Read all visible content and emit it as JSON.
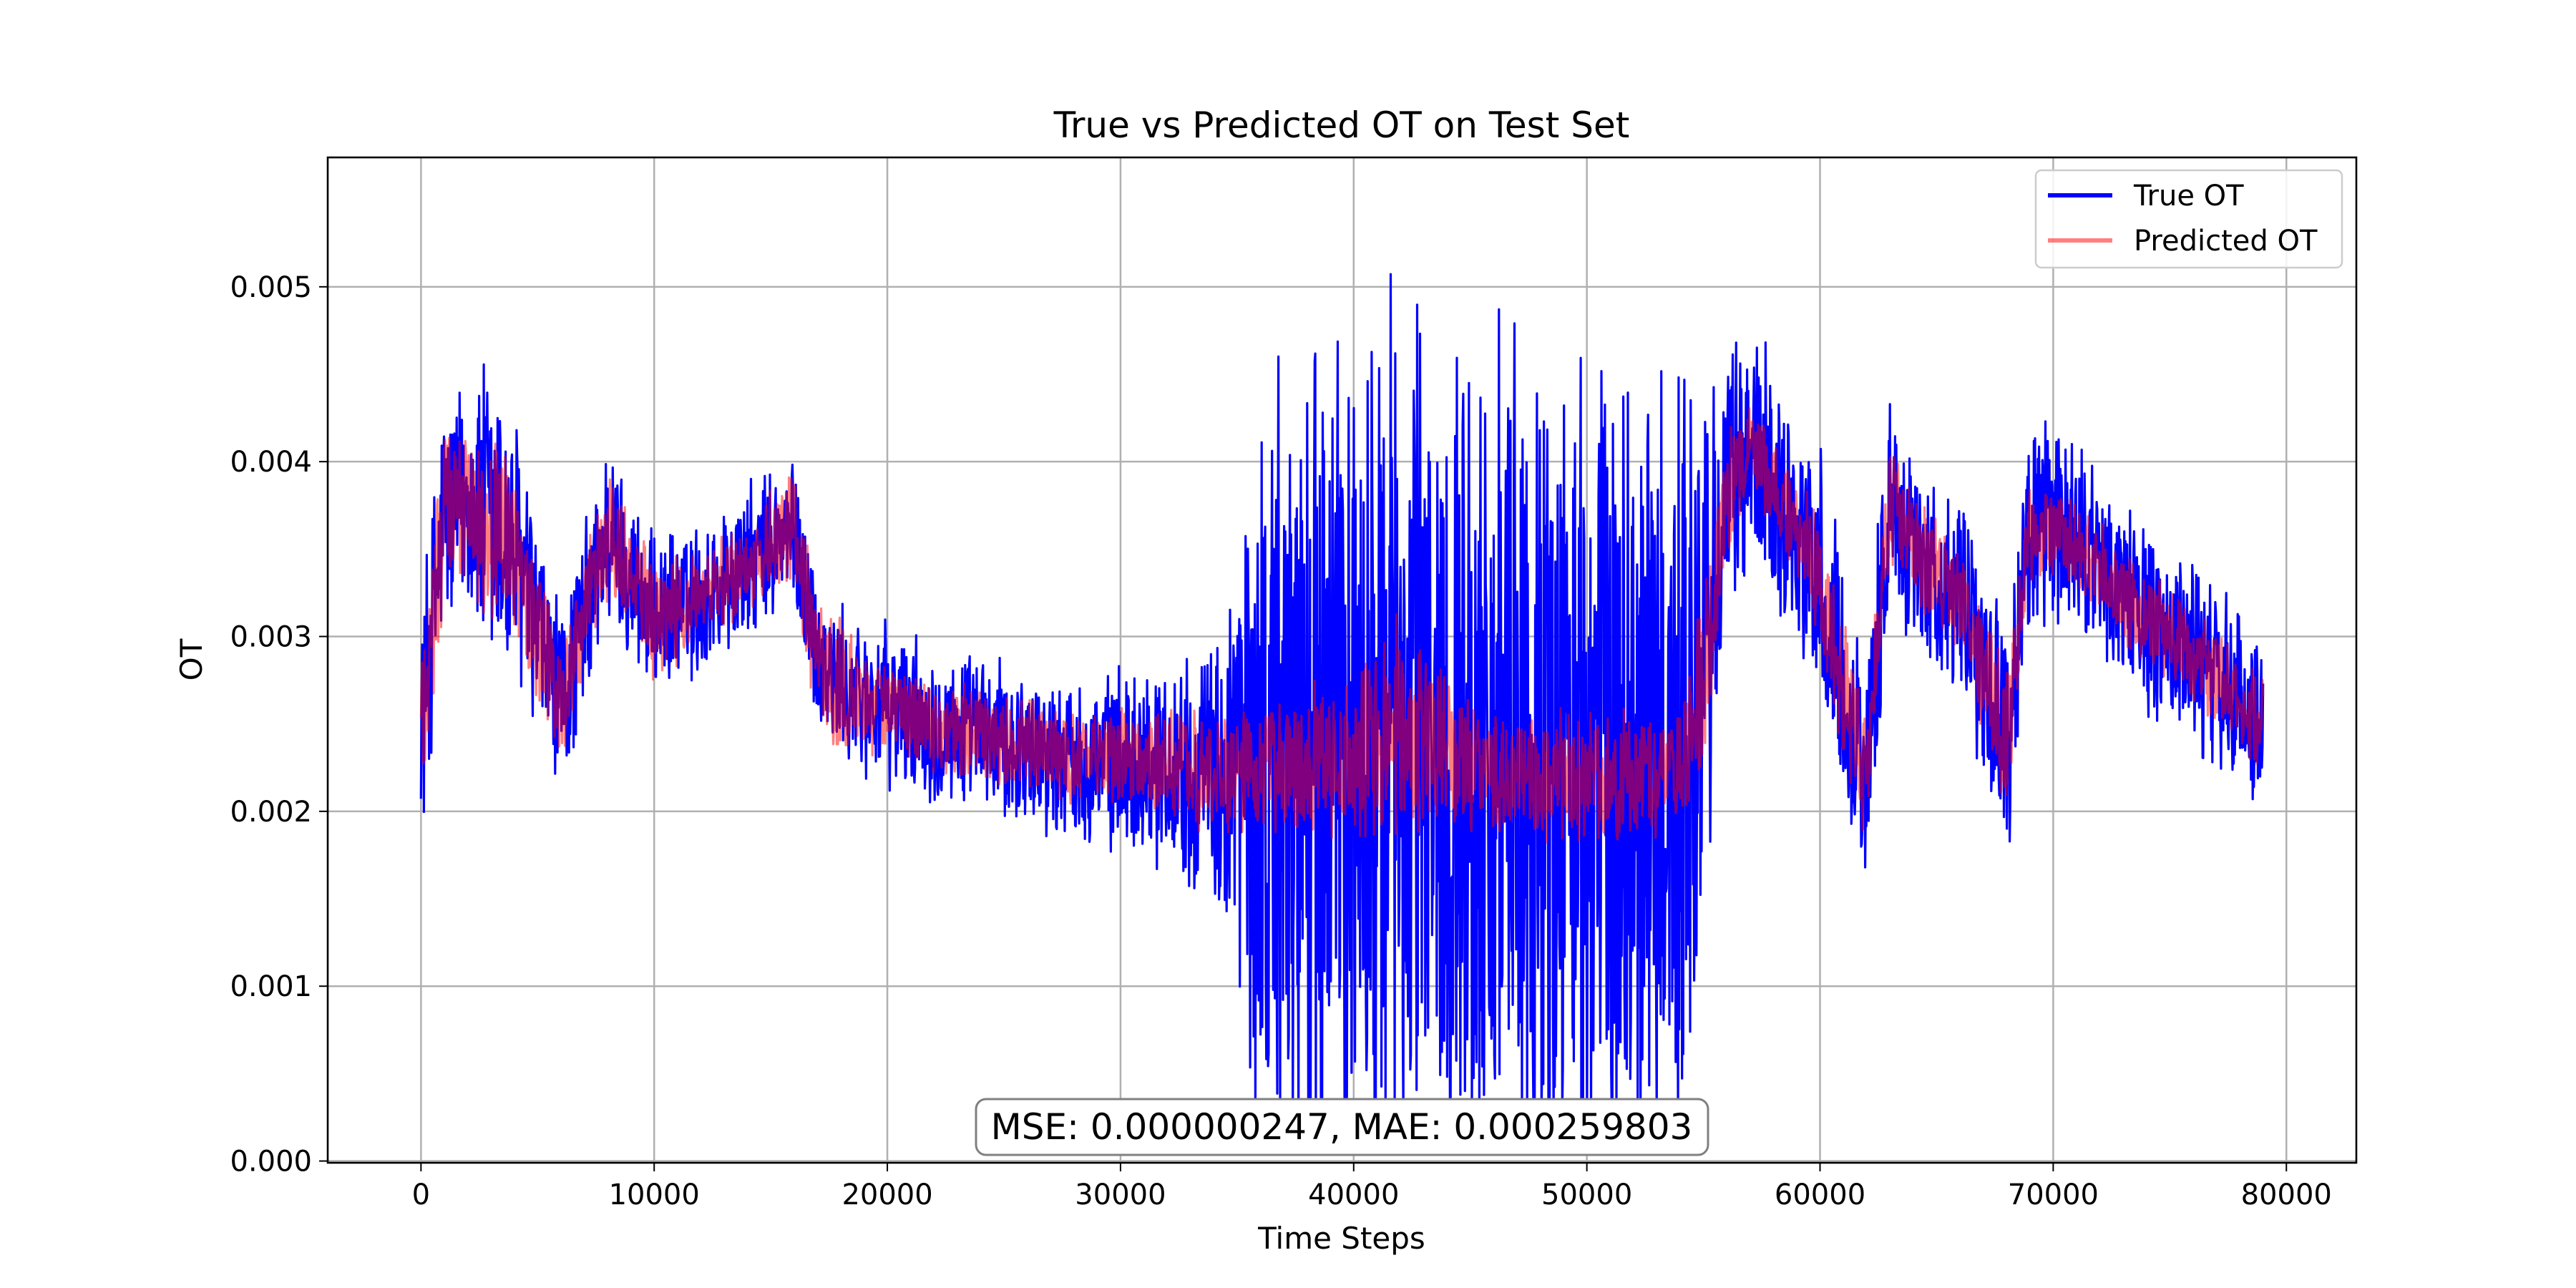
{
  "chart_data": {
    "type": "line",
    "title": "True vs Predicted OT on Test Set",
    "xlabel": "Time Steps",
    "ylabel": "OT",
    "xlim": [
      -4000,
      83000
    ],
    "ylim": [
      -1e-05,
      0.00574
    ],
    "xticks": [
      0,
      10000,
      20000,
      30000,
      40000,
      50000,
      60000,
      70000,
      80000
    ],
    "xtick_labels": [
      "0",
      "10000",
      "20000",
      "30000",
      "40000",
      "50000",
      "60000",
      "70000",
      "80000"
    ],
    "yticks": [
      0.0,
      0.001,
      0.002,
      0.003,
      0.004,
      0.005
    ],
    "ytick_labels": [
      "0.000",
      "0.001",
      "0.002",
      "0.003",
      "0.004",
      "0.005"
    ],
    "grid": true,
    "legend_position": "top-right",
    "annotation": "MSE: 0.000000247, MAE: 0.000259803",
    "series": [
      {
        "name": "True OT",
        "color": "#0000ff",
        "x": [
          0,
          1000,
          2000,
          3000,
          4000,
          5000,
          6000,
          8000,
          10000,
          12000,
          14000,
          16000,
          17000,
          18000,
          20000,
          22000,
          25000,
          28000,
          31000,
          34000,
          36000,
          38000,
          40000,
          42000,
          44000,
          46000,
          48000,
          50000,
          52000,
          54000,
          55000,
          56000,
          57000,
          58000,
          60000,
          61000,
          62000,
          63000,
          64000,
          66000,
          67000,
          68000,
          69000,
          70000,
          72000,
          74000,
          76000,
          78000,
          79000
        ],
        "center": [
          0.0025,
          0.0037,
          0.0038,
          0.0036,
          0.0035,
          0.003,
          0.0026,
          0.0036,
          0.0031,
          0.0032,
          0.0034,
          0.0036,
          0.0029,
          0.0027,
          0.0026,
          0.0025,
          0.0024,
          0.0023,
          0.0023,
          0.0022,
          0.0022,
          0.0023,
          0.0023,
          0.0025,
          0.0023,
          0.0022,
          0.0022,
          0.0022,
          0.0022,
          0.0022,
          0.0028,
          0.0038,
          0.0041,
          0.0039,
          0.0033,
          0.0027,
          0.0022,
          0.0038,
          0.0035,
          0.0032,
          0.0028,
          0.0024,
          0.0036,
          0.0036,
          0.0034,
          0.0031,
          0.0029,
          0.0026,
          0.0025
        ],
        "spread": [
          0.0008,
          0.0008,
          0.0007,
          0.0012,
          0.0009,
          0.0007,
          0.0006,
          0.0006,
          0.0005,
          0.0005,
          0.0005,
          0.0005,
          0.0005,
          0.0005,
          0.0005,
          0.0005,
          0.0005,
          0.0005,
          0.0006,
          0.0008,
          0.0024,
          0.0028,
          0.0028,
          0.0028,
          0.0028,
          0.0028,
          0.0028,
          0.0028,
          0.0027,
          0.0028,
          0.0018,
          0.0009,
          0.0008,
          0.0008,
          0.0008,
          0.0008,
          0.0008,
          0.0007,
          0.0006,
          0.0006,
          0.0007,
          0.0008,
          0.0007,
          0.0007,
          0.0006,
          0.0006,
          0.0006,
          0.0006,
          0.0005
        ]
      },
      {
        "name": "Predicted OT",
        "color": "#ff0000",
        "x": [
          0,
          1000,
          2000,
          3000,
          4000,
          5000,
          6000,
          8000,
          10000,
          12000,
          14000,
          16000,
          17000,
          18000,
          20000,
          22000,
          25000,
          28000,
          31000,
          34000,
          36000,
          38000,
          40000,
          42000,
          44000,
          46000,
          48000,
          50000,
          52000,
          54000,
          55000,
          56000,
          57000,
          58000,
          60000,
          61000,
          62000,
          63000,
          64000,
          66000,
          67000,
          68000,
          69000,
          70000,
          72000,
          74000,
          76000,
          78000,
          79000
        ],
        "center": [
          0.0025,
          0.0037,
          0.0038,
          0.0036,
          0.0035,
          0.003,
          0.0026,
          0.0036,
          0.0031,
          0.0032,
          0.0034,
          0.0036,
          0.0029,
          0.0027,
          0.0026,
          0.0025,
          0.0024,
          0.0023,
          0.0023,
          0.0022,
          0.0022,
          0.0023,
          0.0023,
          0.0025,
          0.0023,
          0.0022,
          0.0022,
          0.0022,
          0.0022,
          0.0022,
          0.0028,
          0.0038,
          0.0041,
          0.0039,
          0.0033,
          0.0027,
          0.0022,
          0.0038,
          0.0035,
          0.0032,
          0.0028,
          0.0024,
          0.0036,
          0.0036,
          0.0034,
          0.0031,
          0.0029,
          0.0026,
          0.0025
        ],
        "spread": [
          0.0006,
          0.0006,
          0.0005,
          0.0007,
          0.0006,
          0.0005,
          0.0004,
          0.0004,
          0.0004,
          0.0003,
          0.0003,
          0.0004,
          0.0004,
          0.0004,
          0.0003,
          0.0003,
          0.0003,
          0.0003,
          0.0003,
          0.0004,
          0.0004,
          0.0005,
          0.0005,
          0.0007,
          0.0005,
          0.0004,
          0.0004,
          0.0004,
          0.0004,
          0.0004,
          0.0006,
          0.0004,
          0.0003,
          0.0003,
          0.0004,
          0.0005,
          0.0004,
          0.0004,
          0.0004,
          0.0003,
          0.0004,
          0.0005,
          0.0003,
          0.0003,
          0.0003,
          0.0003,
          0.0003,
          0.0003,
          0.0003
        ]
      }
    ]
  }
}
